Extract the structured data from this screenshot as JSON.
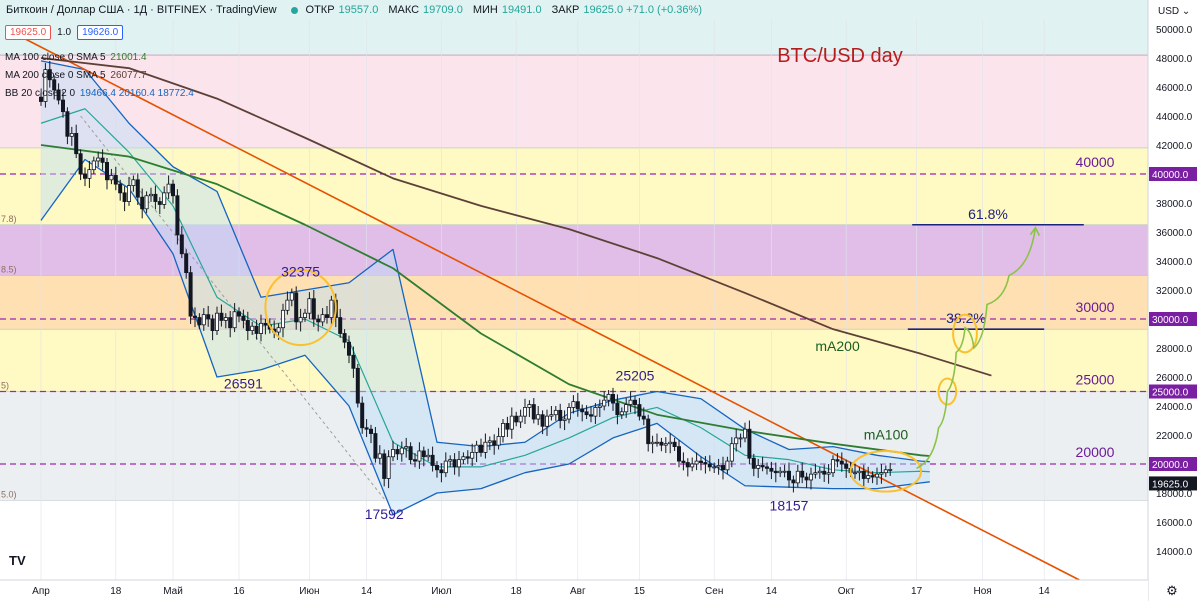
{
  "header": {
    "symbol_label": "Биткоин / Доллар США · 1Д · BITFINEX · TradingView",
    "open_label": "ОТКР",
    "open_value": "19557.0",
    "high_label": "МАКС",
    "high_value": "19709.0",
    "low_label": "МИН",
    "low_value": "19491.0",
    "close_label": "ЗАКР",
    "close_value": "19625.0 +71.0 (+0.36%)",
    "sell_price": "19625.0",
    "spread": "1.0",
    "buy_price": "19626.0",
    "currency": "USD",
    "status_color": "#26a69a"
  },
  "indicators": [
    {
      "name": "MA 100 close 0 SMA 5",
      "value": "21001.4",
      "color": "#2e7d32"
    },
    {
      "name": "MA 200 close 0 SMA 5",
      "value": "26077.7",
      "color": "#5d4037"
    },
    {
      "name": "BB 20 close 2 0",
      "value": "19466.4  20160.4  18772.4",
      "color": "#1565c0"
    }
  ],
  "chart_data": {
    "type": "candlestick",
    "title": "BTC/USD day",
    "xlabel": "",
    "ylabel": "USD",
    "ylim": [
      12000,
      52000
    ],
    "y_ticks": [
      14000,
      16000,
      18000,
      20000,
      22000,
      24000,
      26000,
      28000,
      30000,
      32000,
      34000,
      36000,
      38000,
      40000,
      42000,
      44000,
      46000,
      48000,
      50000
    ],
    "x_ticks": [
      "Апр",
      "18",
      "Май",
      "16",
      "Июн",
      "14",
      "Июл",
      "18",
      "Авг",
      "15",
      "Сен",
      "14",
      "Окт",
      "17",
      "Ноя",
      "14"
    ],
    "x_tick_days": [
      0,
      17,
      30,
      45,
      61,
      74,
      91,
      108,
      122,
      136,
      153,
      166,
      183,
      199,
      214,
      228
    ],
    "close_price_label": "19625.0",
    "levels": [
      {
        "price": 40000,
        "label": "40000",
        "axis_label": "40000.0",
        "color": "#9c27b0"
      },
      {
        "price": 30000,
        "label": "30000",
        "axis_label": "30000.0",
        "color": "#9c27b0"
      },
      {
        "price": 25000,
        "label": "25000",
        "axis_label": "25000.0",
        "color": "#9c27b0"
      },
      {
        "price": 20000,
        "label": "20000",
        "axis_label": "20000.0",
        "color": "#9c27b0"
      }
    ],
    "fib_bands": [
      {
        "from": 48200,
        "to": 52000,
        "color": "#e0f2f1"
      },
      {
        "from": 41800,
        "to": 48200,
        "color": "#fce4ec"
      },
      {
        "from": 36500,
        "to": 41800,
        "color": "#fff9c4"
      },
      {
        "from": 33000,
        "to": 36500,
        "color": "#e1bee7"
      },
      {
        "from": 29300,
        "to": 33000,
        "color": "#ffe0b2"
      },
      {
        "from": 25000,
        "to": 29300,
        "color": "#fff9c4"
      },
      {
        "from": 17500,
        "to": 25000,
        "color": "#eceff1"
      }
    ],
    "fib_left_labels": [
      {
        "price": 36500,
        "text": "7.8)"
      },
      {
        "price": 33000,
        "text": "8.5)"
      },
      {
        "price": 25000,
        "text": "5)"
      },
      {
        "price": 17500,
        "text": "5.0)"
      }
    ],
    "fib_lines": [
      {
        "label": "61.8%",
        "price": 36500,
        "x_start": 198,
        "x_end": 237
      },
      {
        "label": "38.2%",
        "price": 29300,
        "x_start": 197,
        "x_end": 228
      }
    ],
    "annotations": [
      {
        "text": "32375",
        "day": 59,
        "price": 32375
      },
      {
        "text": "26591",
        "day": 46,
        "price": 26591
      },
      {
        "text": "17592",
        "day": 78,
        "price": 17592
      },
      {
        "text": "25205",
        "day": 135,
        "price": 25205
      },
      {
        "text": "18157",
        "day": 170,
        "price": 18157
      }
    ],
    "ma_labels": [
      {
        "text": "mA200",
        "day": 176,
        "price": 27800,
        "color": "#1b5e20"
      },
      {
        "text": "mA100",
        "day": 187,
        "price": 21700,
        "color": "#1b5e20"
      }
    ],
    "trendline": {
      "from": {
        "day": -8,
        "price": 50000
      },
      "to": {
        "day": 236,
        "price": 12000
      },
      "color": "#e65100"
    },
    "series": [
      {
        "name": "MA 100",
        "color": "#2e7d32",
        "x": [
          0,
          20,
          40,
          60,
          80,
          100,
          120,
          140,
          160,
          180,
          200,
          202
        ],
        "y": [
          42000,
          41200,
          39300,
          36500,
          33500,
          29000,
          25500,
          23400,
          22300,
          21400,
          20600,
          20550
        ]
      },
      {
        "name": "MA 200",
        "color": "#5d4037",
        "x": [
          0,
          20,
          40,
          60,
          80,
          100,
          120,
          140,
          160,
          180,
          200,
          216
        ],
        "y": [
          48000,
          47300,
          45200,
          42500,
          39700,
          37800,
          36200,
          34200,
          31800,
          29300,
          27600,
          26100
        ]
      },
      {
        "name": "BB basis",
        "color": "#26a69a",
        "x": [
          0,
          10,
          20,
          30,
          40,
          50,
          60,
          70,
          80,
          90,
          100,
          110,
          120,
          130,
          140,
          150,
          160,
          170,
          180,
          190,
          200,
          202
        ],
        "y": [
          43500,
          44500,
          41500,
          37800,
          31500,
          29500,
          30000,
          28500,
          21500,
          19800,
          19800,
          20600,
          21800,
          23200,
          23900,
          22500,
          20600,
          20300,
          19600,
          19400,
          19500,
          19466
        ]
      },
      {
        "name": "BB upper",
        "color": "#1565c0",
        "x": [
          0,
          10,
          20,
          30,
          40,
          50,
          60,
          70,
          80,
          90,
          100,
          110,
          120,
          130,
          140,
          150,
          160,
          170,
          180,
          190,
          200,
          202
        ],
        "y": [
          47800,
          47200,
          43500,
          40500,
          38800,
          31500,
          32000,
          32500,
          34800,
          21500,
          21200,
          21500,
          23500,
          24400,
          25000,
          24500,
          22400,
          21000,
          21200,
          20600,
          20200,
          20160
        ]
      },
      {
        "name": "BB lower",
        "color": "#1565c0",
        "x": [
          0,
          10,
          20,
          30,
          40,
          50,
          60,
          70,
          80,
          90,
          100,
          110,
          120,
          130,
          140,
          150,
          160,
          170,
          180,
          190,
          200,
          202
        ],
        "y": [
          36800,
          41000,
          39000,
          34500,
          26000,
          26500,
          27500,
          24000,
          16500,
          18000,
          18300,
          19400,
          20000,
          21800,
          22800,
          20500,
          18500,
          18400,
          18300,
          18300,
          18700,
          18772
        ]
      }
    ],
    "candles_close": [
      45000,
      47200,
      46500,
      45800,
      45100,
      44300,
      42600,
      42800,
      41400,
      40000,
      39700,
      40300,
      40900,
      41100,
      40800,
      39600,
      39900,
      39300,
      38700,
      38100,
      39200,
      39600,
      38400,
      37600,
      38500,
      38600,
      38100,
      37900,
      38700,
      39300,
      38500,
      35800,
      34500,
      33200,
      30200,
      30100,
      29600,
      30300,
      30000,
      29200,
      30400,
      29900,
      30100,
      29400,
      30500,
      30200,
      29900,
      29200,
      29500,
      29000,
      29700,
      29600,
      29300,
      29100,
      29400,
      30600,
      31300,
      31800,
      29800,
      30100,
      30400,
      31400,
      30000,
      29800,
      30300,
      30100,
      31300,
      30100,
      29000,
      28400,
      27500,
      26600,
      24200,
      22500,
      22400,
      22100,
      20400,
      20700,
      19000,
      20500,
      21000,
      20700,
      21100,
      21200,
      20300,
      20200,
      20900,
      20500,
      20600,
      19900,
      19600,
      19400,
      20200,
      20300,
      19800,
      20300,
      20500,
      20400,
      20800,
      21300,
      20800,
      21500,
      21600,
      21300,
      21900,
      22800,
      22400,
      23300,
      22900,
      23300,
      23900,
      24100,
      23100,
      23400,
      22600,
      23300,
      23400,
      23700,
      23000,
      23100,
      23900,
      24300,
      23800,
      23600,
      23400,
      23300,
      23900,
      24000,
      24400,
      24800,
      24200,
      23400,
      23600,
      24100,
      24400,
      24100,
      23300,
      23100,
      21400,
      21500,
      21500,
      21300,
      21400,
      21500,
      21200,
      20200,
      20100,
      19800,
      20000,
      20200,
      20100,
      20000,
      19800,
      19800,
      19900,
      19600,
      20200,
      21400,
      21800,
      21800,
      22400,
      20400,
      19700,
      19900,
      19800,
      19700,
      19500,
      19400,
      19500,
      19500,
      18900,
      18700,
      19500,
      19100,
      18900,
      19300,
      19400,
      19500,
      19300,
      19400,
      20300,
      20200,
      20000,
      19700,
      19400,
      19400,
      19500,
      19000,
      19200,
      19100,
      19300,
      19400,
      19600,
      19625
    ],
    "price_ellipses": [
      {
        "day": 59,
        "price": 30800,
        "rday": 8,
        "rprice": 2600
      },
      {
        "day": 192,
        "price": 19500,
        "rday": 8,
        "rprice": 1400
      },
      {
        "day": 210,
        "price": 29000,
        "rday": 2.7,
        "rprice": 1300
      },
      {
        "day": 206,
        "price": 25000,
        "rday": 2,
        "rprice": 900
      }
    ],
    "forecast_path": {
      "x": [
        199,
        204,
        206,
        208,
        210,
        212,
        215,
        220,
        226
      ],
      "y": [
        19700,
        22500,
        25000,
        27700,
        29400,
        28000,
        31000,
        33000,
        36300
      ],
      "color": "#8bc34a"
    }
  }
}
